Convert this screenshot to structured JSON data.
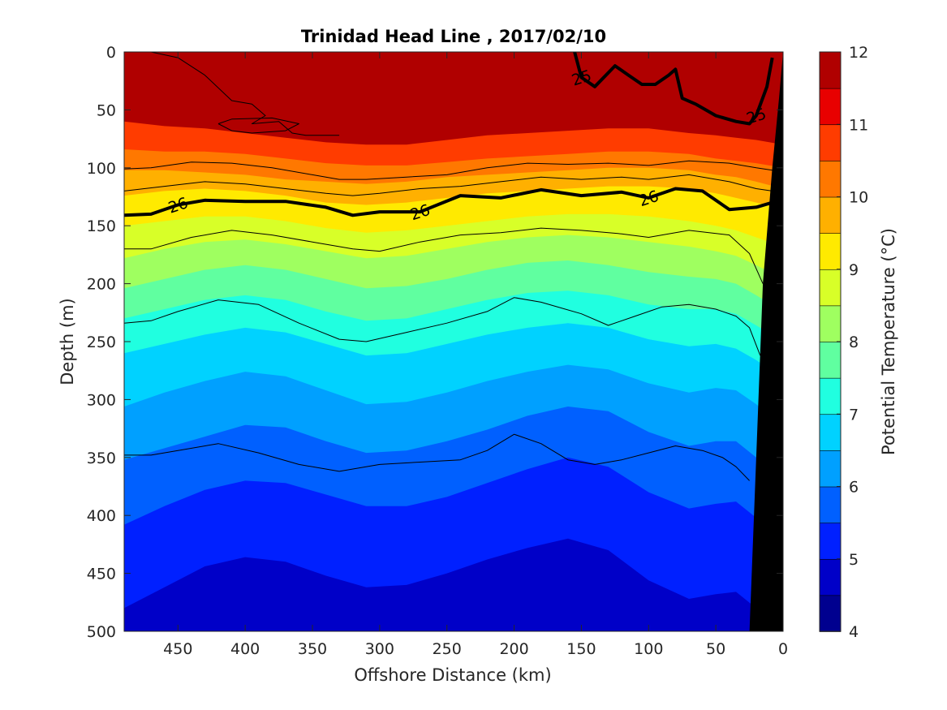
{
  "chart_data": {
    "type": "heatmap",
    "title": "Trinidad Head Line , 2017/02/10",
    "xlabel": "Offshore Distance (km)",
    "ylabel": "Depth (m)",
    "colorbar_label": "Potential Temperature (°C)",
    "xlim": [
      490,
      0
    ],
    "ylim": [
      0,
      500
    ],
    "x_ticks": [
      "450",
      "400",
      "350",
      "300",
      "250",
      "200",
      "150",
      "100",
      "50",
      "0"
    ],
    "y_ticks": [
      "0",
      "50",
      "100",
      "150",
      "200",
      "250",
      "300",
      "350",
      "400",
      "450",
      "500"
    ],
    "colorbar_ticks": [
      "4",
      "5",
      "6",
      "7",
      "8",
      "9",
      "10",
      "11",
      "12"
    ],
    "colorbar_range": [
      4,
      12
    ],
    "colorbar_step": 0.5,
    "colormap": [
      "#00008f",
      "#0000c8",
      "#0020ff",
      "#0060ff",
      "#00a0ff",
      "#00d2ff",
      "#20ffe0",
      "#60ffa0",
      "#9fff60",
      "#d8ff28",
      "#ffea00",
      "#ffb000",
      "#ff7800",
      "#ff3c00",
      "#e80000",
      "#b00000"
    ],
    "grid": false,
    "isotherms_depth_m": [
      {
        "temperature": 11.0,
        "depth": [
          60,
          64,
          66,
          70,
          74,
          78,
          80,
          80,
          76,
          72,
          70,
          68,
          66,
          66,
          70,
          72,
          74,
          76,
          80
        ]
      },
      {
        "temperature": 10.5,
        "depth": [
          84,
          86,
          86,
          88,
          92,
          96,
          98,
          98,
          95,
          92,
          90,
          88,
          86,
          86,
          88,
          92,
          94,
          96,
          100
        ]
      },
      {
        "temperature": 10.0,
        "depth": [
          102,
          102,
          104,
          106,
          110,
          112,
          114,
          112,
          108,
          106,
          104,
          102,
          100,
          100,
          102,
          106,
          108,
          112,
          118
        ]
      },
      {
        "temperature": 9.5,
        "depth": [
          124,
          120,
          118,
          120,
          124,
          130,
          132,
          130,
          126,
          122,
          120,
          118,
          116,
          116,
          118,
          122,
          126,
          130,
          136
        ]
      },
      {
        "temperature": 9.0,
        "depth": [
          150,
          146,
          142,
          142,
          146,
          152,
          156,
          154,
          150,
          146,
          142,
          140,
          140,
          142,
          146,
          150,
          154,
          160,
          168
        ]
      },
      {
        "temperature": 8.5,
        "depth": [
          178,
          170,
          164,
          162,
          166,
          172,
          178,
          176,
          170,
          164,
          160,
          158,
          160,
          164,
          168,
          172,
          176,
          184,
          196
        ]
      },
      {
        "temperature": 8.0,
        "depth": [
          204,
          196,
          188,
          184,
          188,
          196,
          204,
          202,
          196,
          188,
          182,
          180,
          184,
          190,
          194,
          196,
          200,
          210,
          224
        ]
      },
      {
        "temperature": 7.5,
        "depth": [
          230,
          222,
          214,
          210,
          214,
          224,
          232,
          230,
          222,
          214,
          208,
          206,
          210,
          218,
          222,
          222,
          226,
          236,
          250
        ]
      },
      {
        "temperature": 7.0,
        "depth": [
          260,
          252,
          244,
          238,
          242,
          252,
          262,
          260,
          252,
          244,
          238,
          234,
          238,
          248,
          254,
          252,
          256,
          266,
          282
        ]
      },
      {
        "temperature": 6.5,
        "depth": [
          306,
          294,
          284,
          276,
          280,
          292,
          304,
          302,
          294,
          284,
          276,
          270,
          274,
          286,
          294,
          290,
          292,
          304,
          324
        ]
      },
      {
        "temperature": 6.0,
        "depth": [
          352,
          342,
          332,
          322,
          324,
          336,
          346,
          344,
          336,
          326,
          314,
          306,
          310,
          328,
          340,
          336,
          336,
          350,
          372
        ]
      },
      {
        "temperature": 5.5,
        "depth": [
          408,
          392,
          378,
          370,
          372,
          382,
          392,
          392,
          384,
          372,
          360,
          350,
          358,
          380,
          394,
          390,
          388,
          402,
          430
        ]
      },
      {
        "temperature": 5.0,
        "depth": [
          480,
          462,
          444,
          436,
          440,
          452,
          462,
          460,
          450,
          438,
          428,
          420,
          430,
          456,
          472,
          468,
          466,
          480,
          500
        ]
      }
    ],
    "isotherm_distances_km": [
      490,
      460,
      430,
      400,
      370,
      340,
      310,
      280,
      250,
      220,
      190,
      160,
      130,
      100,
      70,
      50,
      35,
      20,
      0
    ],
    "isopycnals": [
      {
        "value": "25",
        "bold": true,
        "labels_at_km": [
          150,
          20
        ],
        "x": [
          155,
          150,
          140,
          125,
          115,
          105,
          95,
          85,
          80,
          75,
          65,
          50,
          35,
          25,
          20,
          12,
          8
        ],
        "y": [
          0,
          22,
          30,
          12,
          20,
          28,
          28,
          20,
          15,
          40,
          45,
          55,
          60,
          62,
          55,
          30,
          5
        ]
      },
      {
        "value": "26",
        "bold": true,
        "labels_at_km": [
          450,
          270,
          100
        ],
        "x": [
          490,
          470,
          450,
          430,
          400,
          370,
          340,
          320,
          300,
          270,
          240,
          210,
          180,
          150,
          120,
          100,
          80,
          60,
          40,
          20,
          8
        ],
        "y": [
          141,
          140,
          132,
          128,
          129,
          129,
          134,
          141,
          138,
          138,
          124,
          126,
          119,
          124,
          121,
          126,
          118,
          120,
          136,
          134,
          130
        ]
      },
      {
        "value": "",
        "bold": false,
        "labels_at_km": [],
        "x": [
          490,
          470,
          440,
          410,
          380,
          350,
          330,
          310,
          280,
          250,
          220,
          190,
          160,
          130,
          100,
          70,
          40,
          20,
          8
        ],
        "y": [
          101,
          100,
          95,
          96,
          100,
          106,
          110,
          110,
          108,
          106,
          100,
          96,
          97,
          96,
          98,
          94,
          96,
          100,
          102
        ]
      },
      {
        "value": "",
        "bold": false,
        "labels_at_km": [],
        "x": [
          490,
          460,
          430,
          400,
          370,
          340,
          320,
          300,
          270,
          240,
          210,
          180,
          150,
          120,
          100,
          70,
          40,
          20,
          8
        ],
        "y": [
          120,
          116,
          112,
          114,
          118,
          122,
          124,
          122,
          118,
          116,
          112,
          108,
          110,
          108,
          110,
          106,
          112,
          118,
          120
        ]
      },
      {
        "value": "",
        "bold": false,
        "labels_at_km": [],
        "x": [
          490,
          470,
          440,
          410,
          380,
          350,
          320,
          300,
          270,
          240,
          210,
          180,
          150,
          120,
          100,
          70,
          40,
          25,
          15
        ],
        "y": [
          170,
          170,
          160,
          154,
          158,
          164,
          170,
          172,
          164,
          158,
          156,
          152,
          154,
          157,
          160,
          154,
          158,
          174,
          200
        ]
      },
      {
        "value": "",
        "bold": false,
        "labels_at_km": [],
        "x": [
          490,
          470,
          450,
          420,
          390,
          360,
          330,
          310,
          280,
          250,
          220,
          200,
          180,
          150,
          130,
          110,
          90,
          70,
          50,
          35,
          25,
          17
        ],
        "y": [
          234,
          232,
          224,
          214,
          218,
          234,
          248,
          250,
          242,
          234,
          224,
          212,
          216,
          226,
          236,
          228,
          220,
          218,
          222,
          228,
          238,
          262
        ]
      },
      {
        "value": "",
        "bold": false,
        "labels_at_km": [],
        "x": [
          490,
          470,
          450,
          420,
          390,
          360,
          330,
          300,
          270,
          240,
          220,
          200,
          180,
          160,
          140,
          120,
          100,
          80,
          60,
          45,
          35,
          25
        ],
        "y": [
          348,
          348,
          344,
          338,
          346,
          356,
          362,
          356,
          354,
          352,
          344,
          330,
          338,
          352,
          356,
          352,
          346,
          340,
          344,
          350,
          358,
          370
        ]
      },
      {
        "value": "",
        "bold": false,
        "labels_at_km": [],
        "x": [
          470,
          450,
          430,
          410,
          395,
          385,
          395,
          375,
          365,
          355,
          330
        ],
        "y": [
          0,
          5,
          20,
          42,
          45,
          55,
          62,
          60,
          70,
          72,
          72
        ]
      },
      {
        "value": "",
        "bold": false,
        "labels_at_km": [],
        "x": [
          420,
          410,
          380,
          360,
          370,
          395,
          410,
          420
        ],
        "y": [
          62,
          58,
          57,
          62,
          68,
          70,
          68,
          62
        ]
      }
    ],
    "bathymetry_km": [
      [
        0,
        0
      ],
      [
        0,
        500
      ],
      [
        25,
        500
      ],
      [
        20,
        350
      ],
      [
        15,
        200
      ],
      [
        8,
        100
      ],
      [
        3,
        40
      ],
      [
        0,
        0
      ]
    ]
  }
}
